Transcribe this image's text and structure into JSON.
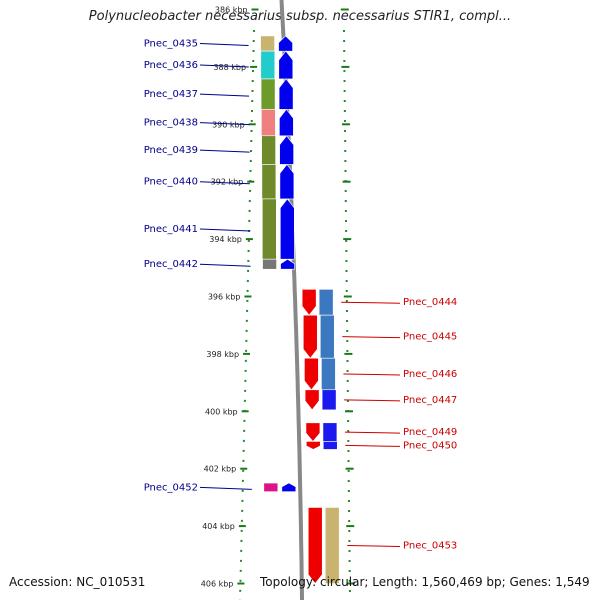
{
  "title": "Polynucleobacter necessarius subsp. necessarius STIR1, compl...",
  "footer": {
    "accession": "Accession: NC_010531",
    "topology": "Topology: circular; Length: 1,560,469 bp; Genes: 1,549"
  },
  "colors": {
    "forward_strand": "#0000ee",
    "reverse_strand": "#ee0000",
    "forward_label": "#00008b",
    "reverse_label": "#cc0000",
    "backbone": "#888888",
    "guide_dots": "#2a8a2a",
    "ticks": "#1a7a1a"
  },
  "ticks": [
    {
      "kbp": 386,
      "label": "386 kbp"
    },
    {
      "kbp": 388,
      "label": "388 kbp"
    },
    {
      "kbp": 390,
      "label": "390 kbp"
    },
    {
      "kbp": 392,
      "label": "392 kbp"
    },
    {
      "kbp": 394,
      "label": "394 kbp"
    },
    {
      "kbp": 396,
      "label": "396 kbp"
    },
    {
      "kbp": 398,
      "label": "398 kbp"
    },
    {
      "kbp": 400,
      "label": "400 kbp"
    },
    {
      "kbp": 402,
      "label": "402 kbp"
    },
    {
      "kbp": 404,
      "label": "404 kbp"
    },
    {
      "kbp": 406,
      "label": "406 kbp"
    }
  ],
  "genes": [
    {
      "label": "Pnec_0435",
      "strand": "+",
      "start_kbp": 386.92,
      "end_kbp": 387.45,
      "category_color": "#c8b46e"
    },
    {
      "label": "Pnec_0436",
      "strand": "+",
      "start_kbp": 387.45,
      "end_kbp": 388.42,
      "category_color": "#22cccc"
    },
    {
      "label": "Pnec_0437",
      "strand": "+",
      "start_kbp": 388.42,
      "end_kbp": 389.48,
      "category_color": "#6e9a2a"
    },
    {
      "label": "Pnec_0438",
      "strand": "+",
      "start_kbp": 389.48,
      "end_kbp": 390.4,
      "category_color": "#ee8080"
    },
    {
      "label": "Pnec_0439",
      "strand": "+",
      "start_kbp": 390.4,
      "end_kbp": 391.4,
      "category_color": "#6e8a2a"
    },
    {
      "label": "Pnec_0440",
      "strand": "+",
      "start_kbp": 391.4,
      "end_kbp": 392.6,
      "category_color": "#6e8a2a"
    },
    {
      "label": "Pnec_0441",
      "strand": "+",
      "start_kbp": 392.6,
      "end_kbp": 394.7,
      "category_color": "#6e8a2a"
    },
    {
      "label": "Pnec_0442",
      "strand": "+",
      "start_kbp": 394.7,
      "end_kbp": 395.05,
      "category_color": "#777777"
    },
    {
      "label": "Pnec_0444",
      "strand": "-",
      "start_kbp": 395.75,
      "end_kbp": 396.65,
      "category_color": "#3b78c0"
    },
    {
      "label": "Pnec_0445",
      "strand": "-",
      "start_kbp": 396.65,
      "end_kbp": 398.15,
      "category_color": "#3b78c0"
    },
    {
      "label": "Pnec_0446",
      "strand": "-",
      "start_kbp": 398.15,
      "end_kbp": 399.25,
      "category_color": "#3b78c0"
    },
    {
      "label": "Pnec_0447",
      "strand": "-",
      "start_kbp": 399.25,
      "end_kbp": 399.95,
      "category_color": "#1a1aee"
    },
    {
      "label": "Pnec_0449",
      "strand": "-",
      "start_kbp": 400.4,
      "end_kbp": 401.05,
      "category_color": "#1a1aee"
    },
    {
      "label": "Pnec_0450",
      "strand": "-",
      "start_kbp": 401.05,
      "end_kbp": 401.1,
      "category_color": "#1a1aee"
    },
    {
      "label": "Pnec_0452",
      "strand": "+",
      "start_kbp": 402.5,
      "end_kbp": 402.8,
      "category_color": "#dd1188"
    },
    {
      "label": "Pnec_0453",
      "strand": "-",
      "start_kbp": 403.35,
      "end_kbp": 406.0,
      "category_color": "#c8b46e"
    }
  ]
}
